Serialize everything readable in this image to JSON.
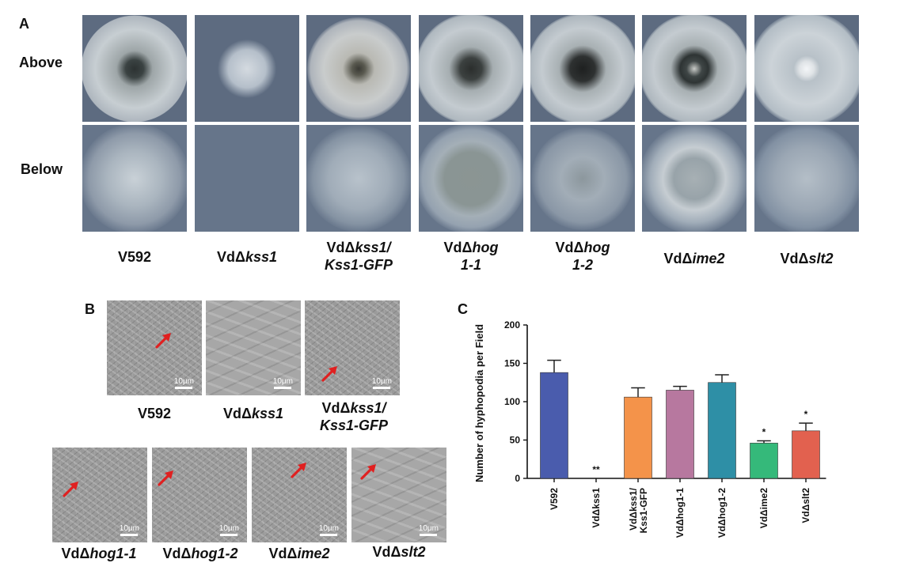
{
  "panel_a": {
    "letter": "A",
    "row_above": "Above",
    "row_below": "Below",
    "strains": [
      {
        "prefix": "V592",
        "italic": "",
        "line2": ""
      },
      {
        "prefix": "VdΔ",
        "italic": "kss1",
        "line2": ""
      },
      {
        "prefix": "VdΔ",
        "italic": "kss1/",
        "line2": "Kss1-GFP"
      },
      {
        "prefix": "VdΔ",
        "italic": "hog",
        "line2": "1-1"
      },
      {
        "prefix": "VdΔ",
        "italic": "hog",
        "line2": "1-2"
      },
      {
        "prefix": "VdΔ",
        "italic": "ime2",
        "line2": ""
      },
      {
        "prefix": "VdΔ",
        "italic": "slt2",
        "line2": ""
      }
    ]
  },
  "panel_b": {
    "letter": "B",
    "scale_text": "10μm",
    "top_labels": [
      {
        "prefix": "V592",
        "italic": "",
        "line2": ""
      },
      {
        "prefix": "VdΔ",
        "italic": "kss1",
        "line2": ""
      },
      {
        "prefix": "VdΔ",
        "italic": "kss1/",
        "line2": "Kss1-GFP"
      }
    ],
    "bottom_labels": [
      {
        "prefix": "VdΔ",
        "italic": "hog1-1"
      },
      {
        "prefix": "VdΔ",
        "italic": "hog1-2"
      },
      {
        "prefix": "VdΔ",
        "italic": "ime2"
      },
      {
        "prefix": "VdΔ",
        "italic": "slt2"
      }
    ]
  },
  "panel_c": {
    "letter": "C"
  },
  "chart_data": {
    "type": "bar",
    "ylabel": "Number of hyphopodia per Field",
    "ylim": [
      0,
      200
    ],
    "yticks": [
      0,
      50,
      100,
      150,
      200
    ],
    "categories": [
      "V592",
      "VdΔkss1",
      "VdΔkss1/ Kss1-GFP",
      "VdΔhog1-1",
      "VdΔhog1-2",
      "VdΔime2",
      "VdΔslt2"
    ],
    "values": [
      138,
      0,
      106,
      115,
      125,
      46,
      62
    ],
    "errors": [
      16,
      0,
      12,
      5,
      10,
      3,
      10
    ],
    "annotations": [
      "",
      "**",
      "",
      "",
      "",
      "*",
      "*"
    ],
    "colors": [
      "#4a5cad",
      "#4a5cad",
      "#f4934a",
      "#b7789f",
      "#2e8fa6",
      "#35b97a",
      "#e2614f"
    ],
    "grid": false
  }
}
